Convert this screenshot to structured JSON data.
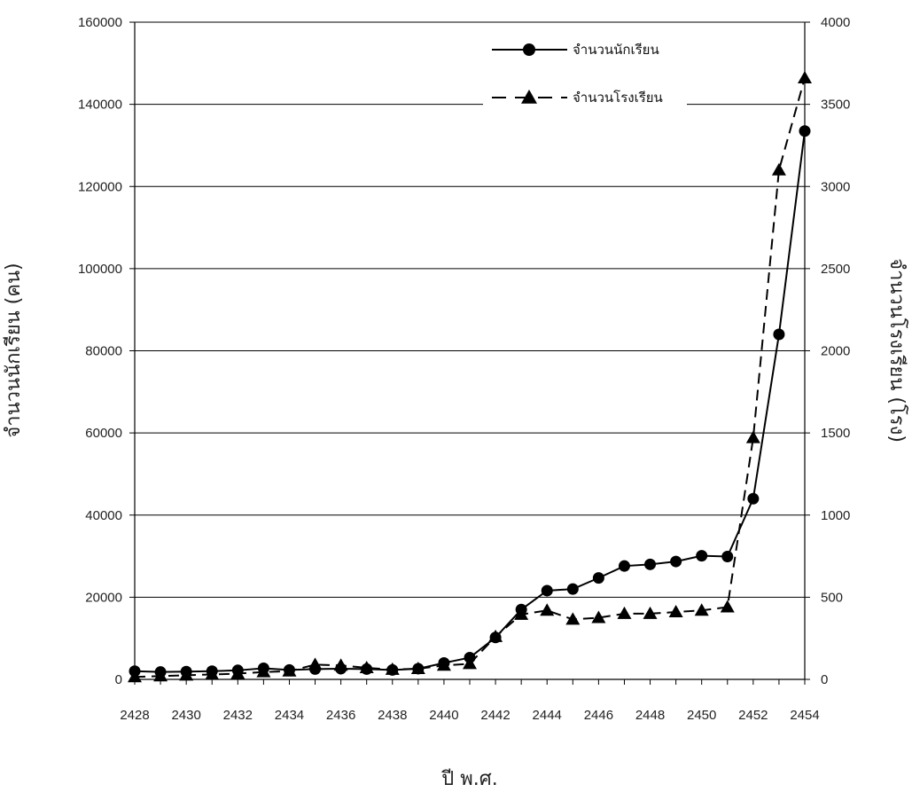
{
  "chart_data": {
    "type": "line",
    "xlabel": "ปี พ.ศ.",
    "ylabel_left": "จำนวนนักเรียน (คน)",
    "ylabel_right": "จำนวนโรงเรียน (โรง)",
    "xlim": [
      2428,
      2454
    ],
    "x_ticks": [
      2428,
      2430,
      2432,
      2434,
      2436,
      2438,
      2440,
      2442,
      2444,
      2446,
      2448,
      2450,
      2452,
      2454
    ],
    "ylim_left": [
      0,
      160000
    ],
    "y_ticks_left": [
      0,
      20000,
      40000,
      60000,
      80000,
      100000,
      120000,
      140000,
      160000
    ],
    "ylim_right": [
      0,
      4000
    ],
    "y_ticks_right": [
      0,
      500,
      1000,
      1500,
      2000,
      2500,
      3000,
      3500,
      4000
    ],
    "grid": "horizontal",
    "legend_position": "top-right",
    "x": [
      2428,
      2429,
      2430,
      2431,
      2432,
      2433,
      2434,
      2435,
      2436,
      2437,
      2438,
      2439,
      2440,
      2441,
      2442,
      2443,
      2444,
      2445,
      2446,
      2447,
      2448,
      2449,
      2450,
      2451,
      2452,
      2453,
      2454
    ],
    "series": [
      {
        "name": "จำนวนนักเรียน",
        "axis": "left",
        "marker": "circle",
        "line": "solid",
        "values": [
          2000,
          1800,
          1900,
          2000,
          2200,
          2700,
          2300,
          2500,
          2600,
          2500,
          2300,
          2600,
          4000,
          5300,
          10200,
          17000,
          21600,
          22000,
          24700,
          27600,
          28000,
          28700,
          30100,
          29900,
          44000,
          84000,
          133500
        ]
      },
      {
        "name": "จำนวนโรงเรียน",
        "axis": "right",
        "marker": "triangle",
        "line": "dashed",
        "values": [
          15,
          20,
          25,
          30,
          35,
          45,
          50,
          90,
          85,
          70,
          60,
          65,
          85,
          95,
          260,
          395,
          420,
          365,
          375,
          400,
          400,
          410,
          420,
          440,
          1470,
          3100,
          3660
        ]
      }
    ]
  }
}
